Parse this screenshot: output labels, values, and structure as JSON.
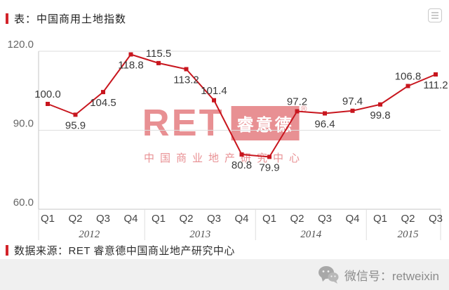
{
  "accent_color": "#d2232a",
  "header": {
    "title": "表：中国商用土地指数"
  },
  "chart_data": {
    "type": "line",
    "title": "中国商用土地指数",
    "categories": [
      "Q1",
      "Q2",
      "Q3",
      "Q4",
      "Q1",
      "Q2",
      "Q3",
      "Q4",
      "Q1",
      "Q2",
      "Q3",
      "Q4",
      "Q1",
      "Q2",
      "Q3"
    ],
    "year_groups": [
      {
        "label": "2012",
        "span": 4
      },
      {
        "label": "2013",
        "span": 4
      },
      {
        "label": "2014",
        "span": 4
      },
      {
        "label": "2015",
        "span": 3
      }
    ],
    "values": [
      100.0,
      95.9,
      104.5,
      118.8,
      115.5,
      113.2,
      101.4,
      80.8,
      79.9,
      97.2,
      96.4,
      97.4,
      99.8,
      106.8,
      111.2
    ],
    "label_positions": [
      "above",
      "below",
      "below",
      "below",
      "above",
      "below",
      "above",
      "below",
      "below",
      "above",
      "below",
      "above",
      "below",
      "above",
      "below"
    ],
    "y_ticks": [
      60.0,
      90.0,
      120.0
    ],
    "ylim": [
      60,
      120
    ],
    "grid": true,
    "legend": "none",
    "line_color": "#c8161e"
  },
  "watermark": {
    "brand": "RET",
    "brand_box": "睿意德",
    "reg": "®",
    "subtitle": "中国商业地产研究中心",
    "color": "#d2232a"
  },
  "footer": {
    "source": "数据来源：RET 睿意德中国商业地产研究中心"
  },
  "social": {
    "label": "微信号：retweixin",
    "icon": "wechat-icon"
  }
}
